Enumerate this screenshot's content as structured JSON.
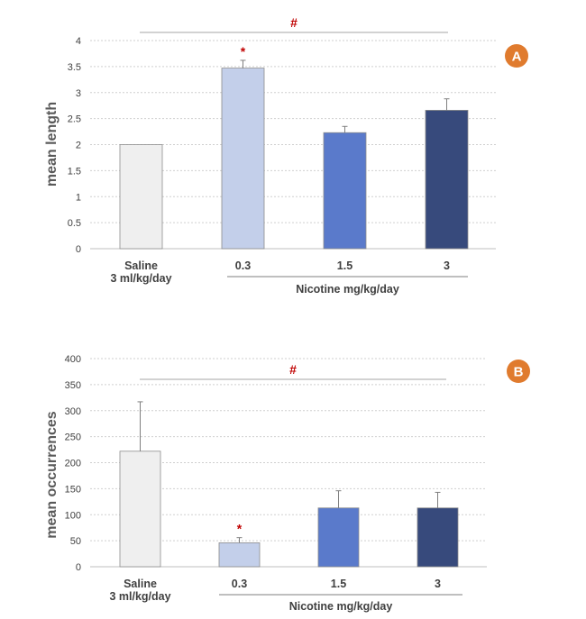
{
  "chart_data": [
    {
      "type": "bar",
      "panel_label": "A",
      "ylabel": "mean length",
      "ylim": [
        0,
        4
      ],
      "yticks": [
        0,
        0.5,
        1,
        1.5,
        2,
        2.5,
        3,
        3.5,
        4
      ],
      "grid": true,
      "categories": [
        "Saline",
        "0.3",
        "1.5",
        "3"
      ],
      "category_sublabels": [
        "3 ml/kg/day",
        "",
        "",
        ""
      ],
      "group_label": "Nicotine mg/kg/day",
      "values": [
        2.0,
        3.47,
        2.23,
        2.66
      ],
      "errors": [
        0.0,
        0.15,
        0.12,
        0.22
      ],
      "colors": [
        "#efefef",
        "#c3cfea",
        "#5a7acb",
        "#374a7c"
      ],
      "significance": {
        "top": "#",
        "bar_markers": [
          "",
          "*",
          "",
          ""
        ]
      }
    },
    {
      "type": "bar",
      "panel_label": "B",
      "ylabel": "mean occurrences",
      "ylim": [
        0,
        400
      ],
      "yticks": [
        0,
        50,
        100,
        150,
        200,
        250,
        300,
        350,
        400
      ],
      "grid": true,
      "categories": [
        "Saline",
        "0.3",
        "1.5",
        "3"
      ],
      "category_sublabels": [
        "3 ml/kg/day",
        "",
        "",
        ""
      ],
      "group_label": "Nicotine mg/kg/day",
      "values": [
        222,
        46,
        113,
        113
      ],
      "errors": [
        95,
        10,
        33,
        30
      ],
      "colors": [
        "#efefef",
        "#c3cfea",
        "#5a7acb",
        "#374a7c"
      ],
      "significance": {
        "top": "#",
        "bar_markers": [
          "",
          "*",
          "",
          ""
        ]
      }
    }
  ],
  "badge_color": "#e07b2e"
}
